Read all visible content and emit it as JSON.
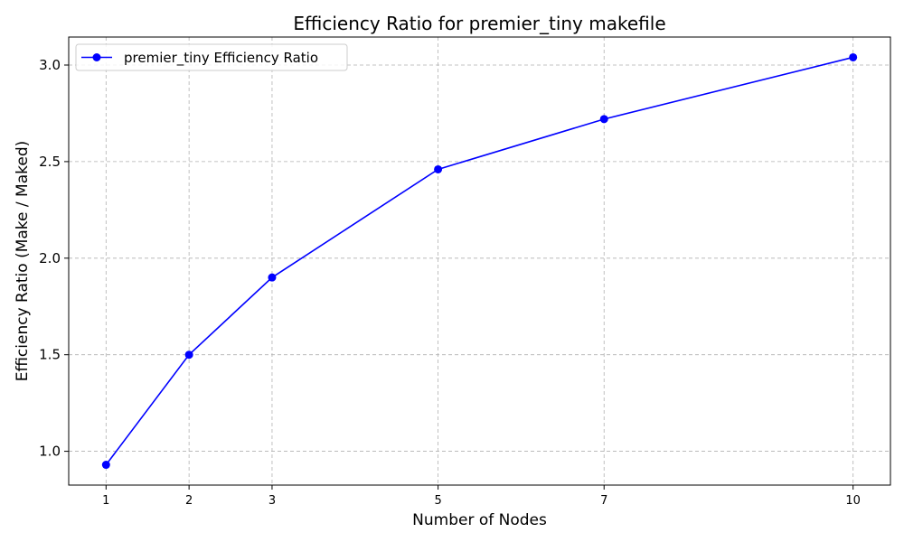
{
  "chart_data": {
    "type": "line",
    "title": "Efficiency Ratio for premier_tiny makefile",
    "xlabel": "Number of Nodes",
    "ylabel": "Efficiency Ratio (Make / Maked)",
    "x": [
      1,
      2,
      3,
      5,
      7,
      10
    ],
    "x_ticks": [
      "1",
      "2",
      "3",
      "5",
      "7",
      "10"
    ],
    "xlim": [
      0.55,
      10.45
    ],
    "y_ticks": [
      "1.0",
      "1.5",
      "2.0",
      "2.5",
      "3.0"
    ],
    "ylim": [
      0.825,
      3.145
    ],
    "grid": true,
    "legend_position": "top-left",
    "series": [
      {
        "name": "premier_tiny Efficiency Ratio",
        "values": [
          0.93,
          1.5,
          1.9,
          2.46,
          2.72,
          3.04
        ],
        "color": "#0000ff",
        "marker": "circle"
      }
    ]
  }
}
